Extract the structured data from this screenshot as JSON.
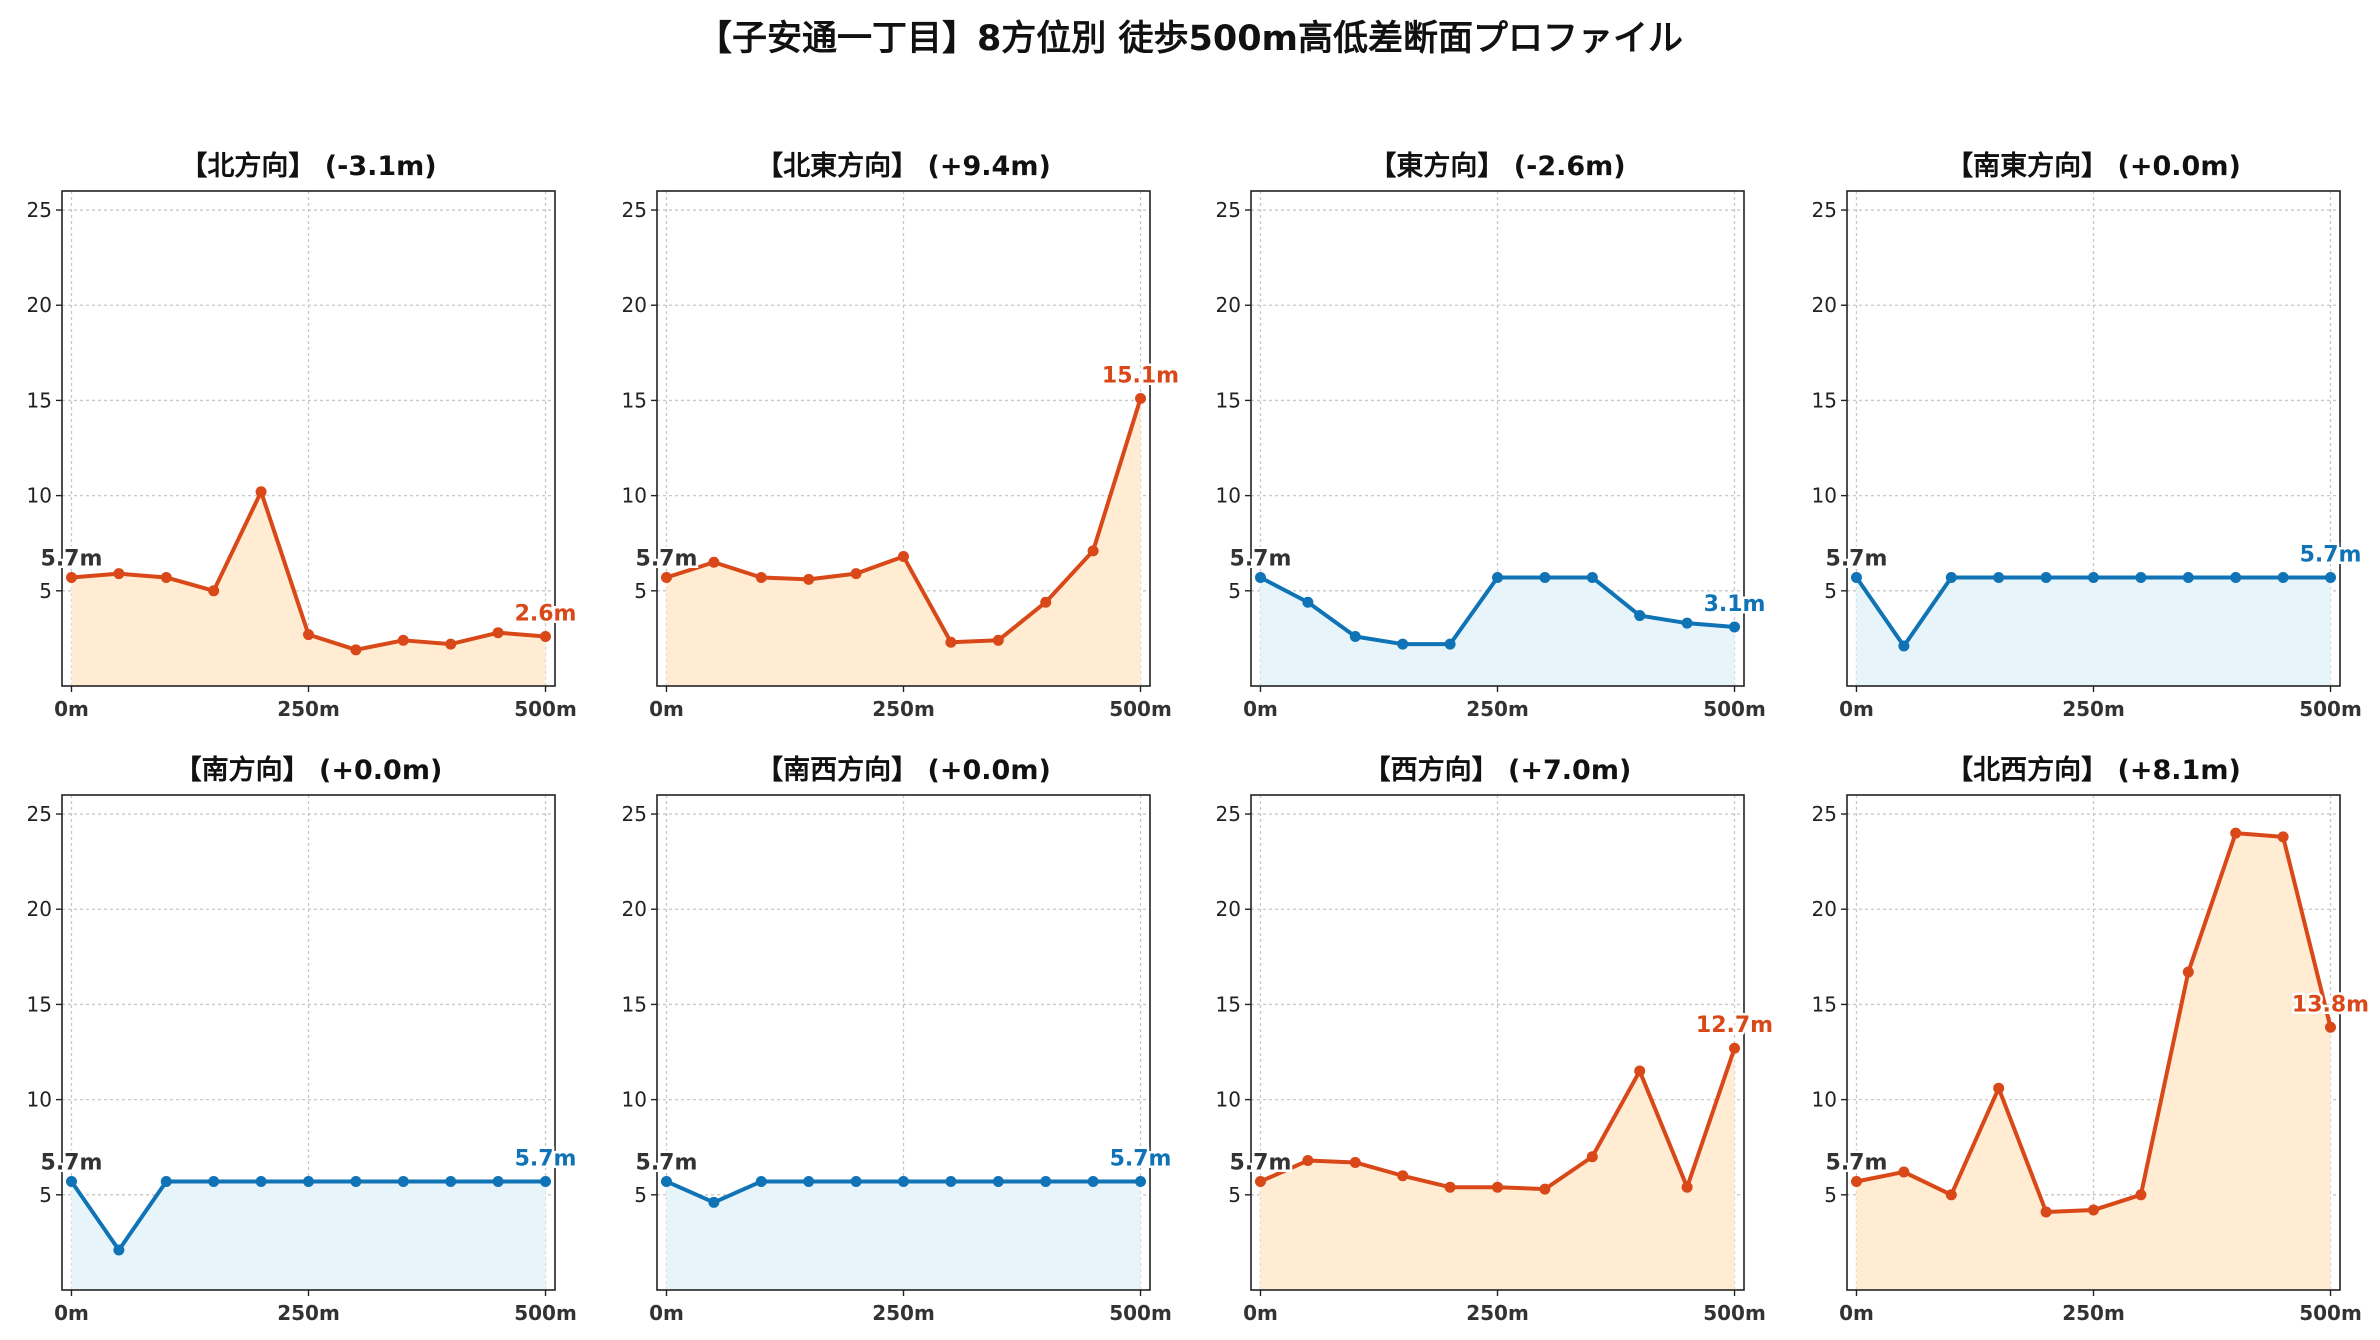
{
  "title": "【子安通一丁目】8方位別 徒歩500m高低差断面プロファイル",
  "colors": {
    "up_line": "#d94818",
    "up_fill": "#ffecd2",
    "down_line": "#0f73b6",
    "down_fill": "#e7f5fb",
    "start_label": "#333333"
  },
  "chart_data": [
    {
      "type": "line",
      "title": "【北方向】 (-3.1m)",
      "trend": "up",
      "x": [
        0,
        50,
        100,
        150,
        200,
        250,
        300,
        350,
        400,
        450,
        500
      ],
      "values": [
        5.7,
        5.9,
        5.7,
        5.0,
        10.2,
        2.7,
        1.9,
        2.4,
        2.2,
        2.8,
        2.6
      ],
      "xticks": [
        "0m",
        "250m",
        "500m"
      ],
      "yticks": [
        5,
        10,
        15,
        20,
        25
      ],
      "ylim": [
        0,
        26
      ],
      "xlim": [
        -10,
        510
      ],
      "grid": true,
      "start_label": "5.7m",
      "end_label": "2.6m"
    },
    {
      "type": "line",
      "title": "【北東方向】 (+9.4m)",
      "trend": "up",
      "x": [
        0,
        50,
        100,
        150,
        200,
        250,
        300,
        350,
        400,
        450,
        500
      ],
      "values": [
        5.7,
        6.5,
        5.7,
        5.6,
        5.9,
        6.8,
        2.3,
        2.4,
        4.4,
        7.1,
        15.1
      ],
      "xticks": [
        "0m",
        "250m",
        "500m"
      ],
      "yticks": [
        5,
        10,
        15,
        20,
        25
      ],
      "ylim": [
        0,
        26
      ],
      "xlim": [
        -10,
        510
      ],
      "grid": true,
      "start_label": "5.7m",
      "end_label": "15.1m"
    },
    {
      "type": "line",
      "title": "【東方向】 (-2.6m)",
      "trend": "down",
      "x": [
        0,
        50,
        100,
        150,
        200,
        250,
        300,
        350,
        400,
        450,
        500
      ],
      "values": [
        5.7,
        4.4,
        2.6,
        2.2,
        2.2,
        5.7,
        5.7,
        5.7,
        3.7,
        3.3,
        3.1
      ],
      "xticks": [
        "0m",
        "250m",
        "500m"
      ],
      "yticks": [
        5,
        10,
        15,
        20,
        25
      ],
      "ylim": [
        0,
        26
      ],
      "xlim": [
        -10,
        510
      ],
      "grid": true,
      "start_label": "5.7m",
      "end_label": "3.1m"
    },
    {
      "type": "line",
      "title": "【南東方向】 (+0.0m)",
      "trend": "down",
      "x": [
        0,
        50,
        100,
        150,
        200,
        250,
        300,
        350,
        400,
        450,
        500
      ],
      "values": [
        5.7,
        2.1,
        5.7,
        5.7,
        5.7,
        5.7,
        5.7,
        5.7,
        5.7,
        5.7,
        5.7
      ],
      "xticks": [
        "0m",
        "250m",
        "500m"
      ],
      "yticks": [
        5,
        10,
        15,
        20,
        25
      ],
      "ylim": [
        0,
        26
      ],
      "xlim": [
        -10,
        510
      ],
      "grid": true,
      "start_label": "5.7m",
      "end_label": "5.7m"
    },
    {
      "type": "line",
      "title": "【南方向】 (+0.0m)",
      "trend": "down",
      "x": [
        0,
        50,
        100,
        150,
        200,
        250,
        300,
        350,
        400,
        450,
        500
      ],
      "values": [
        5.7,
        2.1,
        5.7,
        5.7,
        5.7,
        5.7,
        5.7,
        5.7,
        5.7,
        5.7,
        5.7
      ],
      "xticks": [
        "0m",
        "250m",
        "500m"
      ],
      "yticks": [
        5,
        10,
        15,
        20,
        25
      ],
      "ylim": [
        0,
        26
      ],
      "xlim": [
        -10,
        510
      ],
      "grid": true,
      "start_label": "5.7m",
      "end_label": "5.7m"
    },
    {
      "type": "line",
      "title": "【南西方向】 (+0.0m)",
      "trend": "down",
      "x": [
        0,
        50,
        100,
        150,
        200,
        250,
        300,
        350,
        400,
        450,
        500
      ],
      "values": [
        5.7,
        4.6,
        5.7,
        5.7,
        5.7,
        5.7,
        5.7,
        5.7,
        5.7,
        5.7,
        5.7
      ],
      "xticks": [
        "0m",
        "250m",
        "500m"
      ],
      "yticks": [
        5,
        10,
        15,
        20,
        25
      ],
      "ylim": [
        0,
        26
      ],
      "xlim": [
        -10,
        510
      ],
      "grid": true,
      "start_label": "5.7m",
      "end_label": "5.7m"
    },
    {
      "type": "line",
      "title": "【西方向】 (+7.0m)",
      "trend": "up",
      "x": [
        0,
        50,
        100,
        150,
        200,
        250,
        300,
        350,
        400,
        450,
        500
      ],
      "values": [
        5.7,
        6.8,
        6.7,
        6.0,
        5.4,
        5.4,
        5.3,
        7.0,
        11.5,
        5.4,
        12.7
      ],
      "xticks": [
        "0m",
        "250m",
        "500m"
      ],
      "yticks": [
        5,
        10,
        15,
        20,
        25
      ],
      "ylim": [
        0,
        26
      ],
      "xlim": [
        -10,
        510
      ],
      "grid": true,
      "start_label": "5.7m",
      "end_label": "12.7m"
    },
    {
      "type": "line",
      "title": "【北西方向】 (+8.1m)",
      "trend": "up",
      "x": [
        0,
        50,
        100,
        150,
        200,
        250,
        300,
        350,
        400,
        450,
        500
      ],
      "values": [
        5.7,
        6.2,
        5.0,
        10.6,
        4.1,
        4.2,
        5.0,
        16.7,
        24.0,
        23.8,
        13.8
      ],
      "xticks": [
        "0m",
        "250m",
        "500m"
      ],
      "yticks": [
        5,
        10,
        15,
        20,
        25
      ],
      "ylim": [
        0,
        26
      ],
      "xlim": [
        -10,
        510
      ],
      "grid": true,
      "start_label": "5.7m",
      "end_label": "13.8m"
    }
  ]
}
